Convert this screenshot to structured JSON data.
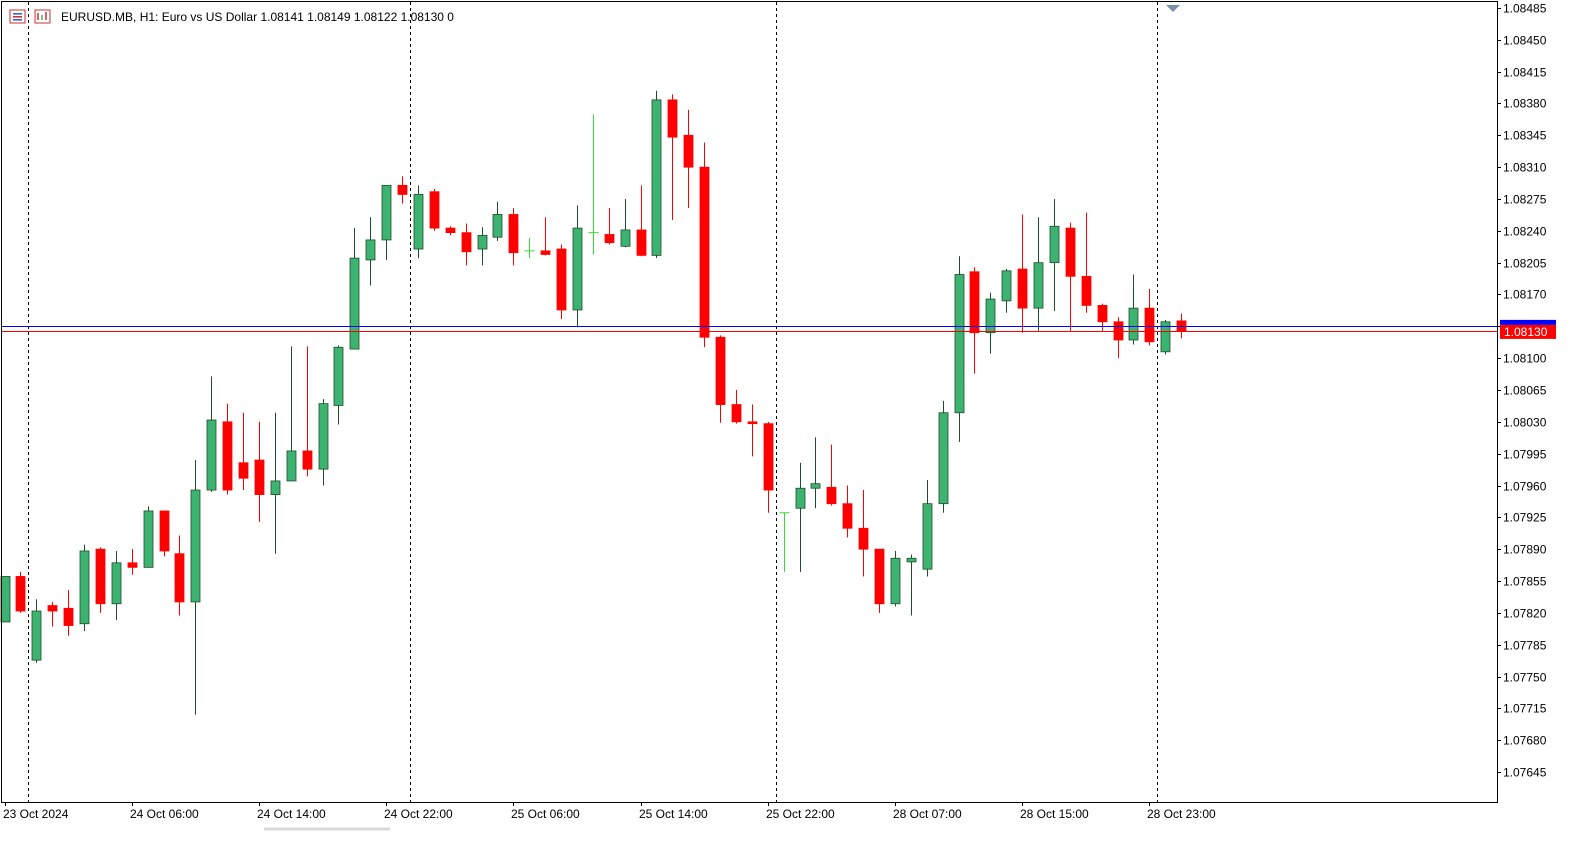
{
  "header": {
    "symbol": "EURUSD.MB",
    "timeframe": "H1:",
    "description": "Euro vs US Dollar",
    "ohlc": "1.08141 1.08149 1.08122 1.08130",
    "extra": "0"
  },
  "colors": {
    "bull": "#3cb371",
    "bear": "#ff0000",
    "bull_outline": "#1e4d2b",
    "bear_outline": "#ff0000",
    "bid_line": "#ff0000",
    "ask_line": "#0000ff",
    "grid_period": "#000000",
    "axis": "#000000",
    "price_tag_bg": "#ff0000",
    "ask_tag_bg": "#0000ff"
  },
  "current_price_label": "1.08130",
  "chart_data": {
    "type": "candlestick",
    "title": "EURUSD.MB, H1: Euro vs US Dollar",
    "ylim": [
      1.07615,
      1.0849
    ],
    "y_ticks": [
      "1.08485",
      "1.08450",
      "1.08415",
      "1.08380",
      "1.08345",
      "1.08310",
      "1.08275",
      "1.08240",
      "1.08205",
      "1.08170",
      "1.08135",
      "1.08100",
      "1.08065",
      "1.08030",
      "1.07995",
      "1.07960",
      "1.07925",
      "1.07890",
      "1.07855",
      "1.07820",
      "1.07785",
      "1.07750",
      "1.07715",
      "1.07680",
      "1.07645"
    ],
    "x_labels": [
      {
        "index": 0,
        "label": "23 Oct 2024"
      },
      {
        "index": 8,
        "label": "24 Oct 06:00"
      },
      {
        "index": 16,
        "label": "24 Oct 14:00"
      },
      {
        "index": 24,
        "label": "24 Oct 22:00"
      },
      {
        "index": 32,
        "label": "25 Oct 06:00"
      },
      {
        "index": 40,
        "label": "25 Oct 14:00"
      },
      {
        "index": 48,
        "label": "25 Oct 22:00"
      },
      {
        "index": 56,
        "label": "28 Oct 07:00"
      },
      {
        "index": 64,
        "label": "28 Oct 15:00"
      },
      {
        "index": 72,
        "label": "28 Oct 23:00"
      }
    ],
    "period_separators": [
      1.5,
      25.5,
      48.5,
      72.5
    ],
    "bid": 1.0813,
    "ask": 1.08135,
    "candles": [
      {
        "o": 1.0781,
        "h": 1.0786,
        "l": 1.0781,
        "c": 1.0786
      },
      {
        "o": 1.0786,
        "h": 1.07865,
        "l": 1.0782,
        "c": 1.07822
      },
      {
        "o": 1.07768,
        "h": 1.07835,
        "l": 1.07765,
        "c": 1.07822
      },
      {
        "o": 1.07828,
        "h": 1.07832,
        "l": 1.07805,
        "c": 1.07822
      },
      {
        "o": 1.07825,
        "h": 1.07845,
        "l": 1.07795,
        "c": 1.07806
      },
      {
        "o": 1.07808,
        "h": 1.07895,
        "l": 1.078,
        "c": 1.07888
      },
      {
        "o": 1.0789,
        "h": 1.07892,
        "l": 1.0782,
        "c": 1.0783
      },
      {
        "o": 1.0783,
        "h": 1.07888,
        "l": 1.07812,
        "c": 1.07875
      },
      {
        "o": 1.07875,
        "h": 1.0789,
        "l": 1.07862,
        "c": 1.0787
      },
      {
        "o": 1.0787,
        "h": 1.07937,
        "l": 1.0787,
        "c": 1.07932
      },
      {
        "o": 1.07932,
        "h": 1.07932,
        "l": 1.07882,
        "c": 1.07888
      },
      {
        "o": 1.07885,
        "h": 1.07905,
        "l": 1.07817,
        "c": 1.07832
      },
      {
        "o": 1.07832,
        "h": 1.07988,
        "l": 1.07708,
        "c": 1.07955
      },
      {
        "o": 1.07955,
        "h": 1.0808,
        "l": 1.07953,
        "c": 1.08032
      },
      {
        "o": 1.0803,
        "h": 1.0805,
        "l": 1.0795,
        "c": 1.07955
      },
      {
        "o": 1.07985,
        "h": 1.0804,
        "l": 1.07955,
        "c": 1.07968
      },
      {
        "o": 1.07988,
        "h": 1.0803,
        "l": 1.0792,
        "c": 1.0795
      },
      {
        "o": 1.0795,
        "h": 1.0804,
        "l": 1.07885,
        "c": 1.07965
      },
      {
        "o": 1.07965,
        "h": 1.08113,
        "l": 1.07965,
        "c": 1.07998
      },
      {
        "o": 1.07998,
        "h": 1.08113,
        "l": 1.0797,
        "c": 1.07978
      },
      {
        "o": 1.07978,
        "h": 1.08055,
        "l": 1.0796,
        "c": 1.0805
      },
      {
        "o": 1.08048,
        "h": 1.08114,
        "l": 1.08027,
        "c": 1.08112
      },
      {
        "o": 1.0811,
        "h": 1.08243,
        "l": 1.0811,
        "c": 1.0821
      },
      {
        "o": 1.08208,
        "h": 1.08255,
        "l": 1.0818,
        "c": 1.0823
      },
      {
        "o": 1.0823,
        "h": 1.0829,
        "l": 1.08208,
        "c": 1.0829
      },
      {
        "o": 1.0829,
        "h": 1.083,
        "l": 1.0827,
        "c": 1.0828
      },
      {
        "o": 1.0822,
        "h": 1.0829,
        "l": 1.0821,
        "c": 1.0828
      },
      {
        "o": 1.08283,
        "h": 1.08286,
        "l": 1.0824,
        "c": 1.08243
      },
      {
        "o": 1.08243,
        "h": 1.08245,
        "l": 1.08235,
        "c": 1.08238
      },
      {
        "o": 1.08238,
        "h": 1.08248,
        "l": 1.08202,
        "c": 1.08217
      },
      {
        "o": 1.0822,
        "h": 1.08244,
        "l": 1.08202,
        "c": 1.08235
      },
      {
        "o": 1.08233,
        "h": 1.08272,
        "l": 1.08229,
        "c": 1.08258
      },
      {
        "o": 1.08258,
        "h": 1.08265,
        "l": 1.08202,
        "c": 1.08216
      },
      {
        "o": 1.08218,
        "h": 1.08232,
        "l": 1.0821,
        "c": 1.08218
      },
      {
        "o": 1.08218,
        "h": 1.08255,
        "l": 1.08213,
        "c": 1.08214
      },
      {
        "o": 1.0822,
        "h": 1.08225,
        "l": 1.08143,
        "c": 1.08153
      },
      {
        "o": 1.08153,
        "h": 1.08268,
        "l": 1.08134,
        "c": 1.08243
      },
      {
        "o": 1.08236,
        "h": 1.08368,
        "l": 1.08214,
        "c": 1.08238
      },
      {
        "o": 1.08236,
        "h": 1.08265,
        "l": 1.08225,
        "c": 1.08227
      },
      {
        "o": 1.08223,
        "h": 1.08275,
        "l": 1.08222,
        "c": 1.08241
      },
      {
        "o": 1.08241,
        "h": 1.0829,
        "l": 1.08212,
        "c": 1.08213
      },
      {
        "o": 1.08213,
        "h": 1.08394,
        "l": 1.0821,
        "c": 1.08384
      },
      {
        "o": 1.08384,
        "h": 1.0839,
        "l": 1.08252,
        "c": 1.08343
      },
      {
        "o": 1.08345,
        "h": 1.08373,
        "l": 1.08265,
        "c": 1.0831
      },
      {
        "o": 1.0831,
        "h": 1.08337,
        "l": 1.08112,
        "c": 1.08123
      },
      {
        "o": 1.08123,
        "h": 1.08125,
        "l": 1.08029,
        "c": 1.08049
      },
      {
        "o": 1.08049,
        "h": 1.08065,
        "l": 1.08028,
        "c": 1.0803
      },
      {
        "o": 1.0803,
        "h": 1.08049,
        "l": 1.07992,
        "c": 1.08028
      },
      {
        "o": 1.08028,
        "h": 1.0803,
        "l": 1.0793,
        "c": 1.07955
      },
      {
        "o": 1.0793,
        "h": 1.0793,
        "l": 1.07865,
        "c": 1.0793
      },
      {
        "o": 1.07935,
        "h": 1.07985,
        "l": 1.07865,
        "c": 1.07957
      },
      {
        "o": 1.07957,
        "h": 1.08013,
        "l": 1.07935,
        "c": 1.07962
      },
      {
        "o": 1.07958,
        "h": 1.08005,
        "l": 1.07938,
        "c": 1.0794
      },
      {
        "o": 1.0794,
        "h": 1.0796,
        "l": 1.07903,
        "c": 1.07913
      },
      {
        "o": 1.07913,
        "h": 1.07955,
        "l": 1.0786,
        "c": 1.0789
      },
      {
        "o": 1.0789,
        "h": 1.0789,
        "l": 1.0782,
        "c": 1.0783
      },
      {
        "o": 1.0783,
        "h": 1.07888,
        "l": 1.07827,
        "c": 1.0788
      },
      {
        "o": 1.07876,
        "h": 1.07884,
        "l": 1.07817,
        "c": 1.0788
      },
      {
        "o": 1.07868,
        "h": 1.07966,
        "l": 1.0786,
        "c": 1.0794
      },
      {
        "o": 1.0794,
        "h": 1.08053,
        "l": 1.0793,
        "c": 1.0804
      },
      {
        "o": 1.0804,
        "h": 1.08212,
        "l": 1.08008,
        "c": 1.08192
      },
      {
        "o": 1.08195,
        "h": 1.082,
        "l": 1.08083,
        "c": 1.08128
      },
      {
        "o": 1.08128,
        "h": 1.08172,
        "l": 1.08105,
        "c": 1.08165
      },
      {
        "o": 1.08163,
        "h": 1.08198,
        "l": 1.0815,
        "c": 1.08196
      },
      {
        "o": 1.08198,
        "h": 1.08258,
        "l": 1.08128,
        "c": 1.08155
      },
      {
        "o": 1.08155,
        "h": 1.08255,
        "l": 1.0813,
        "c": 1.08205
      },
      {
        "o": 1.08205,
        "h": 1.08275,
        "l": 1.08152,
        "c": 1.08245
      },
      {
        "o": 1.08243,
        "h": 1.08249,
        "l": 1.0813,
        "c": 1.0819
      },
      {
        "o": 1.0819,
        "h": 1.0826,
        "l": 1.0815,
        "c": 1.08158
      },
      {
        "o": 1.08158,
        "h": 1.0816,
        "l": 1.0813,
        "c": 1.0814
      },
      {
        "o": 1.0814,
        "h": 1.08145,
        "l": 1.081,
        "c": 1.0812
      },
      {
        "o": 1.0812,
        "h": 1.08192,
        "l": 1.08115,
        "c": 1.08155
      },
      {
        "o": 1.08155,
        "h": 1.08176,
        "l": 1.08114,
        "c": 1.08118
      },
      {
        "o": 1.08107,
        "h": 1.08142,
        "l": 1.08104,
        "c": 1.0814
      },
      {
        "o": 1.08141,
        "h": 1.08149,
        "l": 1.08122,
        "c": 1.0813
      }
    ]
  }
}
